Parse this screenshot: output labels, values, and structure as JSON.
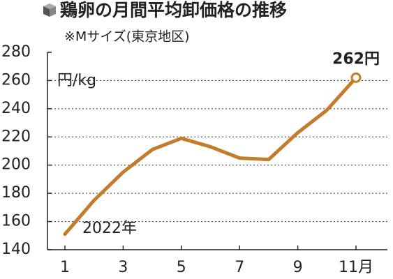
{
  "chart_data": {
    "type": "line",
    "title": "鶏卵の月間平均卸価格の推移",
    "subtitle": "※Mサイズ(東京地区)",
    "y_label": "円/kg",
    "annotation": "2022年",
    "categories": [
      "1",
      null,
      "3",
      null,
      "5",
      null,
      "7",
      null,
      "9",
      null,
      "11月"
    ],
    "values": [
      151,
      175,
      195,
      211,
      219,
      213,
      205,
      204,
      223,
      239,
      262
    ],
    "value_labels": [
      null,
      null,
      null,
      null,
      null,
      null,
      null,
      null,
      null,
      null,
      "262円"
    ],
    "color": "#c27d2c",
    "ylim": [
      140,
      280
    ],
    "yticks": [
      140,
      160,
      180,
      200,
      220,
      240,
      260,
      280
    ],
    "grid": true
  }
}
